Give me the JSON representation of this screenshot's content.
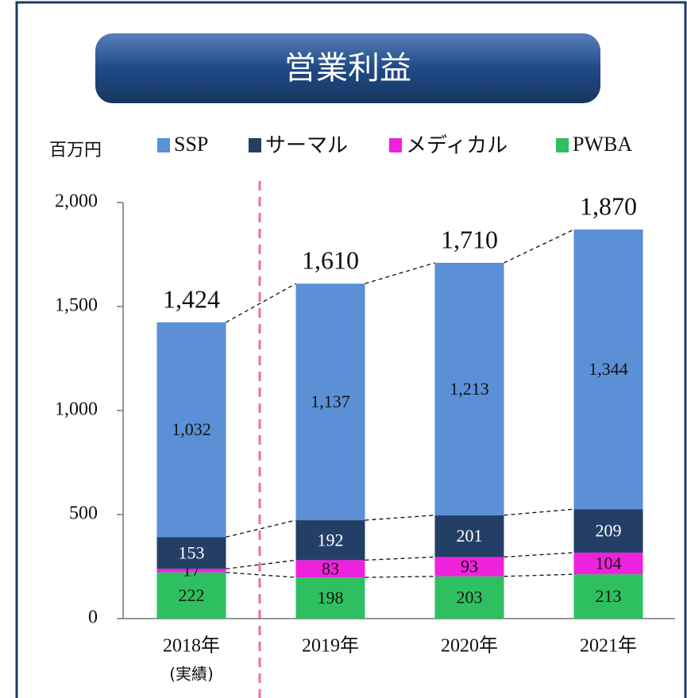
{
  "chart_data": {
    "type": "stacked_bar",
    "title": "営業利益",
    "y_label": "百万円",
    "categories": [
      "2018年",
      "2019年",
      "2020年",
      "2021年"
    ],
    "category_note": "(実績)",
    "series": [
      {
        "name": "SSP",
        "color": "#5b8fd6",
        "values": [
          1032,
          1137,
          1213,
          1344
        ],
        "value_labels": [
          "1,032",
          "1,137",
          "1,213",
          "1,344"
        ]
      },
      {
        "name": "サーマル",
        "color": "#243f66",
        "values": [
          153,
          192,
          201,
          209
        ]
      },
      {
        "name": "メディカル",
        "color": "#ee22dd",
        "values": [
          17,
          83,
          93,
          104
        ]
      },
      {
        "name": "PWBA",
        "color": "#2ec060",
        "values": [
          222,
          198,
          203,
          213
        ]
      }
    ],
    "totals": [
      1424,
      1610,
      1710,
      1870
    ],
    "total_labels": [
      "1,424",
      "1,610",
      "1,710",
      "1,870"
    ],
    "ylim": [
      0,
      2000
    ],
    "yticks": [
      0,
      500,
      {
        "value": 1000,
        "label": "1,000"
      },
      {
        "value": 1500,
        "label": "1,500"
      },
      {
        "value": 2000,
        "label": "2,000"
      }
    ]
  }
}
